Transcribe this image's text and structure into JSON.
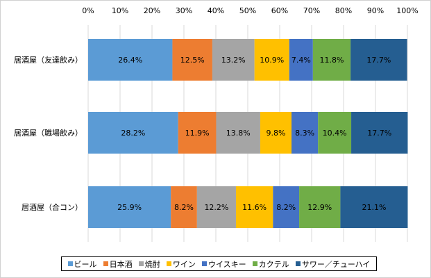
{
  "chart_data": {
    "type": "bar",
    "orientation": "horizontal",
    "stacked": "percent",
    "categories": [
      "居酒屋（友達飲み）",
      "居酒屋（職場飲み）",
      "居酒屋（合コン）"
    ],
    "x_ticks": [
      "0%",
      "10%",
      "20%",
      "30%",
      "40%",
      "50%",
      "60%",
      "70%",
      "80%",
      "90%",
      "100%"
    ],
    "xlim": [
      0,
      100
    ],
    "x_axis_position": "top",
    "grid": true,
    "legend_position": "bottom",
    "series": [
      {
        "name": "ビール",
        "color": "#5b9bd5",
        "values": [
          26.4,
          28.2,
          25.9
        ],
        "labels": [
          "26.4%",
          "28.2%",
          "25.9%"
        ]
      },
      {
        "name": "日本酒",
        "color": "#ed7d31",
        "values": [
          12.5,
          11.9,
          8.2
        ],
        "labels": [
          "12.5%",
          "11.9%",
          "8.2%"
        ]
      },
      {
        "name": "焼酎",
        "color": "#a5a5a5",
        "values": [
          13.2,
          13.8,
          12.2
        ],
        "labels": [
          "13.2%",
          "13.8%",
          "12.2%"
        ]
      },
      {
        "name": "ワイン",
        "color": "#ffc000",
        "values": [
          10.9,
          9.8,
          11.6
        ],
        "labels": [
          "10.9%",
          "9.8%",
          "11.6%"
        ]
      },
      {
        "name": "ウイスキー",
        "color": "#4472c4",
        "values": [
          7.4,
          8.3,
          8.2
        ],
        "labels": [
          "7.4%",
          "8.3%",
          "8.2%"
        ]
      },
      {
        "name": "カクテル",
        "color": "#70ad47",
        "values": [
          11.8,
          10.4,
          12.9
        ],
        "labels": [
          "11.8%",
          "10.4%",
          "12.9%"
        ]
      },
      {
        "name": "サワー／チューハイ",
        "color": "#255e91",
        "values": [
          17.7,
          17.7,
          21.1
        ],
        "labels": [
          "17.7%",
          "17.7%",
          "21.1%"
        ]
      }
    ]
  }
}
